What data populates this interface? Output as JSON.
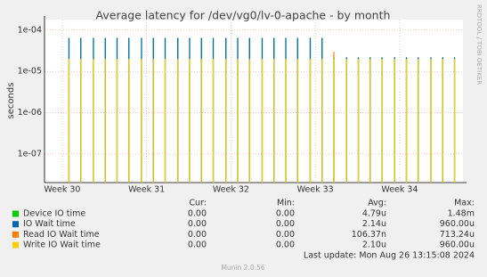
{
  "chart_data": {
    "type": "line",
    "title": "Average latency for /dev/vg0/lv-0-apache - by month",
    "y_label": "seconds",
    "side_label": "RRDTOOL / TOBI OETIKER",
    "log_y": true,
    "grid": true,
    "x": [
      30.08,
      30.22,
      30.37,
      30.51,
      30.65,
      30.79,
      30.94,
      31.08,
      31.22,
      31.37,
      31.51,
      31.65,
      31.79,
      31.94,
      32.08,
      32.22,
      32.37,
      32.51,
      32.65,
      32.79,
      32.94,
      33.08,
      33.22,
      33.37,
      33.51,
      33.65,
      33.79,
      33.94,
      34.08,
      34.22,
      34.37,
      34.51,
      34.65
    ],
    "xlim": [
      29.79,
      34.75
    ],
    "xticks": [
      {
        "value": 30,
        "label": "Week 30"
      },
      {
        "value": 31,
        "label": "Week 31"
      },
      {
        "value": 32,
        "label": "Week 32"
      },
      {
        "value": 33,
        "label": "Week 33"
      },
      {
        "value": 34,
        "label": "Week 34"
      }
    ],
    "ylim": [
      2.04e-08,
      0.00018
    ],
    "yticks": [
      {
        "value": 0.0001,
        "label": "1e-04"
      },
      {
        "value": 1e-05,
        "label": "1e-05"
      },
      {
        "value": 1e-06,
        "label": "1e-06"
      },
      {
        "value": 1e-07,
        "label": "1e-07"
      }
    ],
    "series": [
      {
        "name": "Device IO time",
        "color": "#00cc00",
        "values": [
          6.5e-05,
          6.5e-05,
          6.5e-05,
          6.5e-05,
          6.5e-05,
          6.5e-05,
          6.5e-05,
          6.5e-05,
          6.5e-05,
          6.5e-05,
          6.5e-05,
          6.5e-05,
          6.5e-05,
          6.5e-05,
          6.5e-05,
          6.5e-05,
          6.5e-05,
          6.5e-05,
          6.5e-05,
          6.5e-05,
          6.5e-05,
          6.5e-05,
          2.2e-05,
          2.2e-05,
          2.2e-05,
          2.2e-05,
          2.2e-05,
          2.2e-05,
          2.2e-05,
          2.2e-05,
          2.2e-05,
          2.2e-05,
          2.2e-05
        ],
        "cur": "0.00",
        "min": "0.00",
        "avg": "4.79u",
        "max": "1.48m"
      },
      {
        "name": "IO Wait time",
        "color": "#0066b3",
        "values": [
          6.5e-05,
          6.5e-05,
          6.5e-05,
          6.5e-05,
          6.5e-05,
          6.5e-05,
          6.5e-05,
          6.5e-05,
          6.5e-05,
          6.5e-05,
          6.5e-05,
          6.5e-05,
          6.5e-05,
          6.5e-05,
          6.5e-05,
          6.5e-05,
          6.5e-05,
          6.5e-05,
          6.5e-05,
          6.5e-05,
          6.5e-05,
          6.5e-05,
          2.2e-05,
          2.2e-05,
          2.2e-05,
          2.2e-05,
          2.2e-05,
          2.2e-05,
          2.2e-05,
          2.2e-05,
          2.2e-05,
          2.2e-05,
          2.2e-05
        ],
        "cur": "0.00",
        "min": "0.00",
        "avg": "2.14u",
        "max": "960.00u"
      },
      {
        "name": "Read IO Wait time",
        "color": "#ff8000",
        "values": [
          null,
          null,
          null,
          null,
          null,
          null,
          null,
          null,
          null,
          null,
          null,
          null,
          null,
          null,
          null,
          null,
          null,
          null,
          null,
          null,
          null,
          null,
          3e-05,
          null,
          null,
          null,
          null,
          null,
          null,
          null,
          null,
          null,
          null
        ],
        "cur": "0.00",
        "min": "0.00",
        "avg": "106.37n",
        "max": "713.24u"
      },
      {
        "name": "Write IO Wait time",
        "color": "#ffcc00",
        "values": [
          2e-05,
          2e-05,
          2e-05,
          2e-05,
          2e-05,
          2e-05,
          2e-05,
          2e-05,
          2e-05,
          2e-05,
          2e-05,
          2e-05,
          2e-05,
          2e-05,
          2e-05,
          2e-05,
          2e-05,
          2e-05,
          2e-05,
          2e-05,
          2e-05,
          2e-05,
          2e-05,
          2e-05,
          2e-05,
          2e-05,
          2e-05,
          2e-05,
          2e-05,
          2e-05,
          2e-05,
          2e-05,
          2e-05
        ],
        "cur": "0.00",
        "min": "0.00",
        "avg": "2.10u",
        "max": "960.00u"
      }
    ],
    "legend_headers": [
      "Cur:",
      "Min:",
      "Avg:",
      "Max:"
    ],
    "last_update": "Last update: Mon Aug 26 13:15:08 2024",
    "footer": "Munin 2.0.56"
  }
}
